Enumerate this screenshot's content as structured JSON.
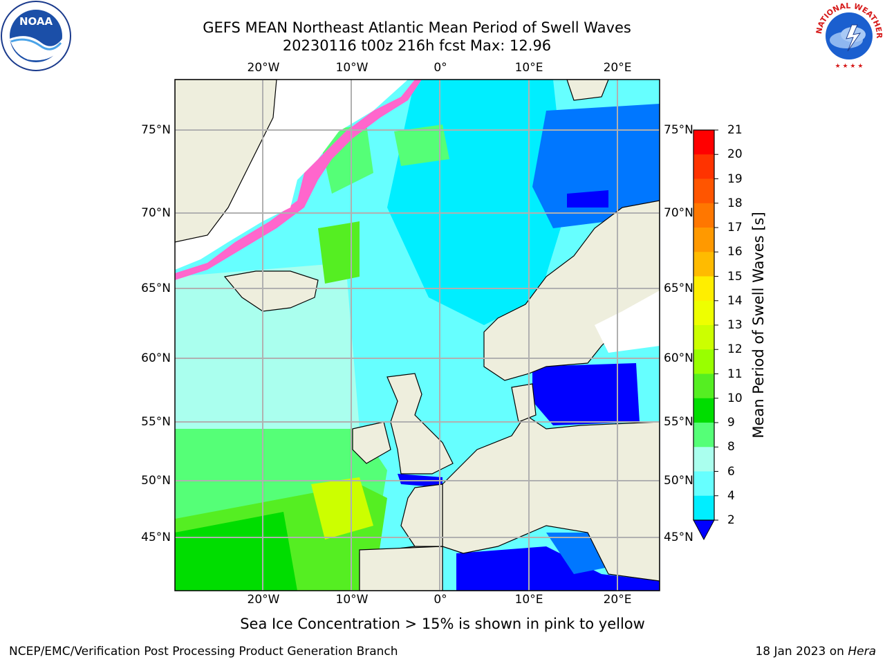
{
  "title": {
    "line1": "GEFS MEAN Northeast Atlantic Mean Period of Swell Waves",
    "line2": "20230116 t00z 216h fcst   Max: 12.96"
  },
  "logos": {
    "noaa_text": "NOAA",
    "nws_text": "NATIONAL WEATHER SERVICE"
  },
  "axes": {
    "lon_labels": [
      "20°W",
      "10°W",
      "0°",
      "10°E",
      "20°E"
    ],
    "lat_labels": [
      "75°N",
      "70°N",
      "65°N",
      "60°N",
      "55°N",
      "50°N",
      "45°N"
    ]
  },
  "colorbar": {
    "label": "Mean Period of Swell Waves [s]",
    "ticks": [
      "21",
      "20",
      "19",
      "18",
      "17",
      "16",
      "15",
      "14",
      "13",
      "12",
      "11",
      "10",
      "9",
      "8",
      "6",
      "4",
      "2"
    ],
    "colors": [
      "#ff0000",
      "#ff3300",
      "#ff5500",
      "#ff7700",
      "#ff9900",
      "#ffbb00",
      "#ffee00",
      "#eeff00",
      "#ccff00",
      "#99ff00",
      "#55ee22",
      "#00dd00",
      "#55ff77",
      "#aaffee",
      "#66ffff",
      "#00eeff",
      "#0077ff",
      "#0000ff"
    ]
  },
  "notes": {
    "ice": "Sea Ice Concentration > 15% is shown in pink to yellow",
    "footer_left": "NCEP/EMC/Verification Post Processing Product Generation Branch",
    "footer_date": "18 Jan 2023 on ",
    "footer_host": "Hera"
  }
}
